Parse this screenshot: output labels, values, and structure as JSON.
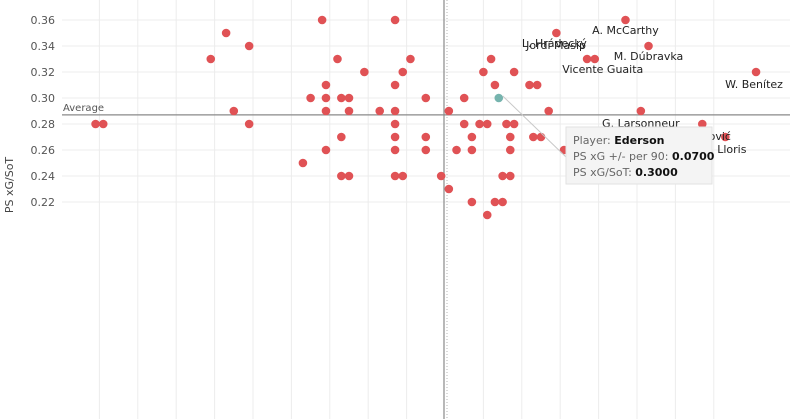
{
  "chart_data": {
    "type": "scatter",
    "ylabel": "PS xG/SoT",
    "xlabel": "",
    "x_domain": [
      -0.5,
      0.4
    ],
    "ylim": [
      0.21,
      0.365
    ],
    "yticks": [
      0.22,
      0.24,
      0.26,
      0.28,
      0.3,
      0.32,
      0.34,
      0.36
    ],
    "grid": true,
    "colors": {
      "point": "#e05255",
      "highlight": "#76b4ae",
      "reference": "#8a8a8a"
    },
    "reference_lines": {
      "average_label": "Average",
      "x_average": 0.0,
      "y_average": 0.287
    },
    "series": [
      {
        "points": [
          {
            "x": -0.16,
            "y": 0.36
          },
          {
            "x": -0.065,
            "y": 0.36
          },
          {
            "x": -0.285,
            "y": 0.35
          },
          {
            "x": -0.255,
            "y": 0.34
          },
          {
            "x": -0.305,
            "y": 0.33
          },
          {
            "x": -0.14,
            "y": 0.33
          },
          {
            "x": -0.045,
            "y": 0.33
          },
          {
            "x": -0.105,
            "y": 0.32
          },
          {
            "x": -0.055,
            "y": 0.32
          },
          {
            "x": -0.155,
            "y": 0.31
          },
          {
            "x": -0.065,
            "y": 0.31
          },
          {
            "x": -0.175,
            "y": 0.3
          },
          {
            "x": -0.155,
            "y": 0.3
          },
          {
            "x": -0.135,
            "y": 0.3
          },
          {
            "x": -0.125,
            "y": 0.3
          },
          {
            "x": -0.025,
            "y": 0.3
          },
          {
            "x": -0.275,
            "y": 0.29
          },
          {
            "x": -0.155,
            "y": 0.29
          },
          {
            "x": -0.125,
            "y": 0.29
          },
          {
            "x": -0.085,
            "y": 0.29
          },
          {
            "x": -0.065,
            "y": 0.29
          },
          {
            "x": -0.455,
            "y": 0.28
          },
          {
            "x": -0.445,
            "y": 0.28
          },
          {
            "x": -0.255,
            "y": 0.28
          },
          {
            "x": -0.065,
            "y": 0.28
          },
          {
            "x": -0.135,
            "y": 0.27
          },
          {
            "x": -0.065,
            "y": 0.27
          },
          {
            "x": -0.025,
            "y": 0.27
          },
          {
            "x": -0.155,
            "y": 0.26
          },
          {
            "x": -0.065,
            "y": 0.26
          },
          {
            "x": -0.025,
            "y": 0.26
          },
          {
            "x": -0.185,
            "y": 0.25
          },
          {
            "x": -0.135,
            "y": 0.24
          },
          {
            "x": -0.125,
            "y": 0.24
          },
          {
            "x": -0.065,
            "y": 0.24
          },
          {
            "x": -0.055,
            "y": 0.24
          },
          {
            "x": -0.005,
            "y": 0.24
          },
          {
            "x": 0.05,
            "y": 0.32
          },
          {
            "x": 0.09,
            "y": 0.32
          },
          {
            "x": 0.06,
            "y": 0.33
          },
          {
            "x": 0.065,
            "y": 0.31
          },
          {
            "x": 0.11,
            "y": 0.31
          },
          {
            "x": 0.12,
            "y": 0.31
          },
          {
            "x": 0.025,
            "y": 0.3
          },
          {
            "x": 0.005,
            "y": 0.29
          },
          {
            "x": 0.135,
            "y": 0.29
          },
          {
            "x": 0.025,
            "y": 0.28
          },
          {
            "x": 0.045,
            "y": 0.28
          },
          {
            "x": 0.055,
            "y": 0.28
          },
          {
            "x": 0.08,
            "y": 0.28
          },
          {
            "x": 0.09,
            "y": 0.28
          },
          {
            "x": 0.035,
            "y": 0.27
          },
          {
            "x": 0.085,
            "y": 0.27
          },
          {
            "x": 0.115,
            "y": 0.27
          },
          {
            "x": 0.125,
            "y": 0.27
          },
          {
            "x": 0.215,
            "y": 0.27
          },
          {
            "x": 0.235,
            "y": 0.27
          },
          {
            "x": 0.015,
            "y": 0.26
          },
          {
            "x": 0.035,
            "y": 0.26
          },
          {
            "x": 0.085,
            "y": 0.26
          },
          {
            "x": 0.155,
            "y": 0.26
          },
          {
            "x": 0.195,
            "y": 0.26
          },
          {
            "x": 0.235,
            "y": 0.26
          },
          {
            "x": 0.075,
            "y": 0.24
          },
          {
            "x": 0.085,
            "y": 0.24
          },
          {
            "x": 0.005,
            "y": 0.23
          },
          {
            "x": 0.035,
            "y": 0.22
          },
          {
            "x": 0.065,
            "y": 0.22
          },
          {
            "x": 0.075,
            "y": 0.22
          },
          {
            "x": 0.055,
            "y": 0.21
          },
          {
            "x": 0.235,
            "y": 0.36,
            "label": "A. McCarthy"
          },
          {
            "x": 0.145,
            "y": 0.35,
            "label": "L. Hrádecký"
          },
          {
            "x": 0.265,
            "y": 0.34,
            "label": "M. Dúbravka"
          },
          {
            "x": 0.185,
            "y": 0.33,
            "label": "Jordi Masip"
          },
          {
            "x": 0.195,
            "y": 0.33,
            "label": "Vicente Guaita"
          },
          {
            "x": 0.405,
            "y": 0.32,
            "label": "W. Benítez"
          },
          {
            "x": 0.255,
            "y": 0.29,
            "label": "G. Larsonneur"
          },
          {
            "x": 0.335,
            "y": 0.28,
            "label": "P. Rajković"
          },
          {
            "x": 0.365,
            "y": 0.27,
            "label": "H. Lloris"
          },
          {
            "x": 0.07,
            "y": 0.3,
            "highlight": true
          }
        ]
      }
    ],
    "tooltip": {
      "rows": [
        {
          "key": "Player: ",
          "value": "Ederson"
        },
        {
          "key": "PS xG +/- per 90: ",
          "value": "0.0700"
        },
        {
          "key": "PS xG/SoT: ",
          "value": "0.3000"
        }
      ]
    }
  }
}
